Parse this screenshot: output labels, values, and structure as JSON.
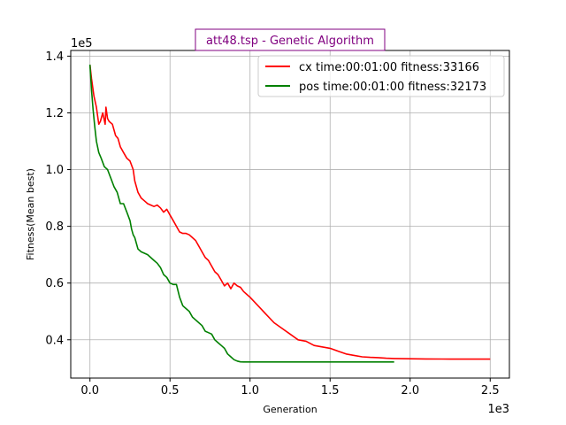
{
  "chart_data": {
    "type": "line",
    "title": "att48.tsp - Genetic Algorithm",
    "title_color": "#800080",
    "xlabel": "Generation",
    "ylabel": "Fitness(Mean best)",
    "x_offset_label": "1e3",
    "y_offset_label": "1e5",
    "xlim": [
      -120,
      2620
    ],
    "ylim": [
      26500,
      142000
    ],
    "x_ticks": [
      0,
      500,
      1000,
      1500,
      2000,
      2500
    ],
    "x_tick_labels": [
      "0.0",
      "0.5",
      "1.0",
      "1.5",
      "2.0",
      "2.5"
    ],
    "y_ticks": [
      40000,
      60000,
      80000,
      100000,
      120000,
      140000
    ],
    "y_tick_labels": [
      "0.4",
      "0.6",
      "0.8",
      "1.0",
      "1.2",
      "1.4"
    ],
    "grid": true,
    "legend_position": "top-right",
    "series": [
      {
        "name": "cx time:00:01:00 fitness:33166",
        "color": "#ff0000",
        "x": [
          0,
          10,
          25,
          40,
          55,
          65,
          80,
          95,
          100,
          110,
          120,
          140,
          160,
          175,
          190,
          210,
          230,
          250,
          270,
          280,
          300,
          320,
          340,
          360,
          380,
          400,
          420,
          440,
          460,
          480,
          500,
          520,
          540,
          560,
          580,
          600,
          620,
          640,
          660,
          680,
          700,
          720,
          740,
          760,
          780,
          800,
          820,
          840,
          860,
          880,
          900,
          920,
          940,
          960,
          980,
          1000,
          1050,
          1100,
          1150,
          1200,
          1250,
          1300,
          1350,
          1400,
          1450,
          1500,
          1550,
          1600,
          1650,
          1700,
          1750,
          1800,
          1850,
          1900,
          2000,
          2100,
          2200,
          2300,
          2400,
          2500
        ],
        "y": [
          137000,
          132000,
          126000,
          122000,
          116000,
          117000,
          120000,
          116000,
          122000,
          118000,
          117000,
          116000,
          112000,
          111000,
          108000,
          106000,
          104000,
          103000,
          100000,
          96000,
          92000,
          90000,
          89000,
          88000,
          87500,
          87000,
          87500,
          86500,
          85000,
          86000,
          84000,
          82000,
          80000,
          78000,
          77500,
          77500,
          77000,
          76000,
          75000,
          73000,
          71000,
          69000,
          68000,
          66000,
          64000,
          63000,
          61000,
          59000,
          60000,
          58000,
          60000,
          59000,
          58500,
          57000,
          56000,
          55000,
          52000,
          49000,
          46000,
          44000,
          42000,
          40000,
          39500,
          38000,
          37500,
          37000,
          36000,
          35000,
          34500,
          34000,
          33800,
          33700,
          33500,
          33400,
          33300,
          33250,
          33200,
          33180,
          33170,
          33166
        ]
      },
      {
        "name": "pos time:00:01:00 fitness:32173",
        "color": "#008000",
        "x": [
          0,
          10,
          20,
          30,
          40,
          55,
          70,
          90,
          110,
          130,
          150,
          170,
          190,
          210,
          230,
          250,
          260,
          270,
          280,
          300,
          320,
          340,
          360,
          380,
          400,
          420,
          440,
          460,
          480,
          500,
          520,
          540,
          560,
          580,
          600,
          620,
          640,
          660,
          680,
          700,
          720,
          740,
          760,
          780,
          800,
          820,
          840,
          860,
          880,
          900,
          920,
          940,
          960,
          1000,
          1200,
          1400,
          1600,
          1800,
          1900
        ],
        "y": [
          137000,
          128000,
          121000,
          115000,
          110000,
          106000,
          104000,
          101000,
          100000,
          97000,
          94000,
          92000,
          88000,
          88000,
          85000,
          82000,
          79000,
          77000,
          76000,
          72000,
          71000,
          70500,
          70000,
          69000,
          68000,
          67000,
          65500,
          63000,
          62000,
          60000,
          59500,
          59500,
          55000,
          52000,
          51000,
          50000,
          48000,
          47000,
          46000,
          45000,
          43000,
          42500,
          42000,
          40000,
          39000,
          38000,
          37000,
          35000,
          34000,
          33000,
          32500,
          32200,
          32173,
          32173,
          32173,
          32173,
          32173,
          32173,
          32173
        ]
      }
    ]
  }
}
